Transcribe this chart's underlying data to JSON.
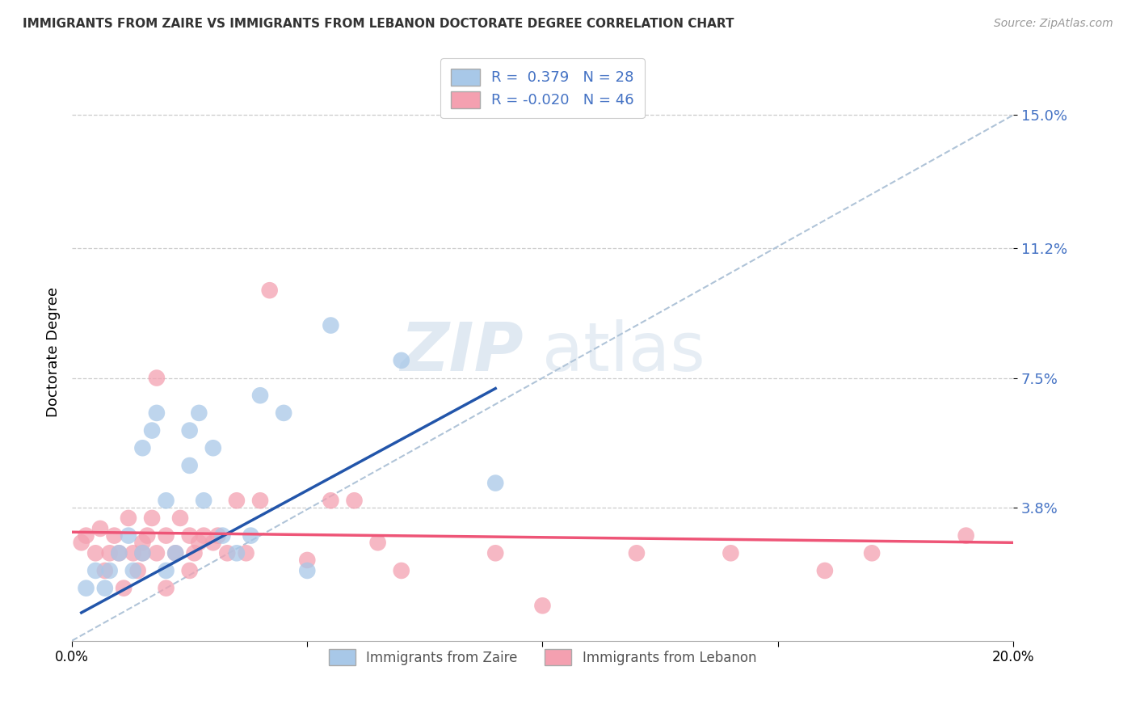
{
  "title": "IMMIGRANTS FROM ZAIRE VS IMMIGRANTS FROM LEBANON DOCTORATE DEGREE CORRELATION CHART",
  "source": "Source: ZipAtlas.com",
  "ylabel": "Doctorate Degree",
  "ytick_labels": [
    "15.0%",
    "11.2%",
    "7.5%",
    "3.8%"
  ],
  "ytick_values": [
    0.15,
    0.112,
    0.075,
    0.038
  ],
  "xlim": [
    0.0,
    0.2
  ],
  "ylim": [
    0.0,
    0.165
  ],
  "legend_label_zaire": "Immigrants from Zaire",
  "legend_label_lebanon": "Immigrants from Lebanon",
  "zaire_color": "#a8c8e8",
  "lebanon_color": "#f4a0b0",
  "zaire_line_color": "#2255aa",
  "lebanon_line_color": "#ee5577",
  "diagonal_line_color": "#b0c4d8",
  "watermark_zip": "ZIP",
  "watermark_atlas": "atlas",
  "zaire_R": 0.379,
  "zaire_N": 28,
  "lebanon_R": -0.02,
  "lebanon_N": 46,
  "zaire_scatter_x": [
    0.003,
    0.005,
    0.007,
    0.008,
    0.01,
    0.012,
    0.013,
    0.015,
    0.015,
    0.017,
    0.018,
    0.02,
    0.02,
    0.022,
    0.025,
    0.025,
    0.027,
    0.028,
    0.03,
    0.032,
    0.035,
    0.038,
    0.04,
    0.045,
    0.05,
    0.055,
    0.07,
    0.09
  ],
  "zaire_scatter_y": [
    0.015,
    0.02,
    0.015,
    0.02,
    0.025,
    0.03,
    0.02,
    0.025,
    0.055,
    0.06,
    0.065,
    0.02,
    0.04,
    0.025,
    0.05,
    0.06,
    0.065,
    0.04,
    0.055,
    0.03,
    0.025,
    0.03,
    0.07,
    0.065,
    0.02,
    0.09,
    0.08,
    0.045
  ],
  "lebanon_scatter_x": [
    0.002,
    0.003,
    0.005,
    0.006,
    0.007,
    0.008,
    0.009,
    0.01,
    0.011,
    0.012,
    0.013,
    0.014,
    0.015,
    0.015,
    0.016,
    0.017,
    0.018,
    0.018,
    0.02,
    0.02,
    0.022,
    0.023,
    0.025,
    0.025,
    0.026,
    0.027,
    0.028,
    0.03,
    0.031,
    0.033,
    0.035,
    0.037,
    0.04,
    0.042,
    0.05,
    0.055,
    0.06,
    0.065,
    0.07,
    0.09,
    0.1,
    0.12,
    0.14,
    0.16,
    0.17,
    0.19
  ],
  "lebanon_scatter_y": [
    0.028,
    0.03,
    0.025,
    0.032,
    0.02,
    0.025,
    0.03,
    0.025,
    0.015,
    0.035,
    0.025,
    0.02,
    0.028,
    0.025,
    0.03,
    0.035,
    0.025,
    0.075,
    0.015,
    0.03,
    0.025,
    0.035,
    0.02,
    0.03,
    0.025,
    0.028,
    0.03,
    0.028,
    0.03,
    0.025,
    0.04,
    0.025,
    0.04,
    0.1,
    0.023,
    0.04,
    0.04,
    0.028,
    0.02,
    0.025,
    0.01,
    0.025,
    0.025,
    0.02,
    0.025,
    0.03
  ],
  "zaire_line_x": [
    0.002,
    0.09
  ],
  "zaire_line_y": [
    0.008,
    0.072
  ],
  "lebanon_line_x": [
    0.0,
    0.2
  ],
  "lebanon_line_y": [
    0.031,
    0.028
  ]
}
